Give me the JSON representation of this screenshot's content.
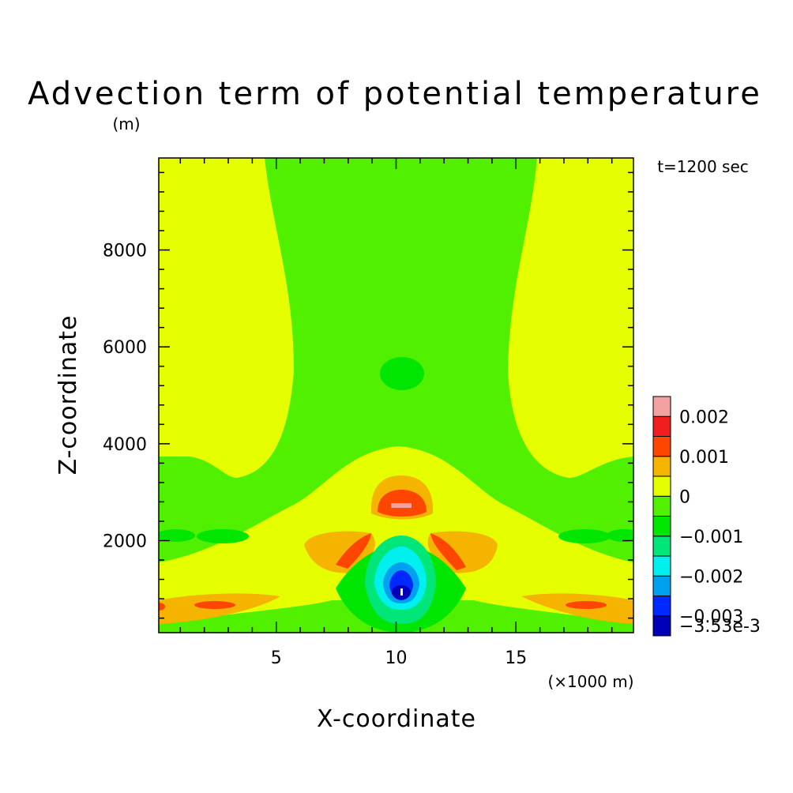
{
  "chart_data": {
    "type": "heatmap",
    "title": "Advection term of potential temperature",
    "ylabel_unit": "(m)",
    "xlabel": "X-coordinate",
    "ylabel": "Z-coordinate",
    "xlabel_unit": "(×1000 m)",
    "annotation": "t=1200 sec",
    "xlim": [
      0.1,
      19.9
    ],
    "ylim": [
      100,
      9900
    ],
    "x_ticks": [
      5,
      10,
      15
    ],
    "y_ticks": [
      2000,
      4000,
      6000,
      8000
    ],
    "grid": false,
    "colorbar": {
      "placement": "right",
      "levels": [
        {
          "color": "#0000b8",
          "label": "-3.53e-3"
        },
        {
          "color": "#0028ff",
          "label": "-0.003"
        },
        {
          "color": "#00a0f0",
          "label": ""
        },
        {
          "color": "#00f0f0",
          "label": "-0.002"
        },
        {
          "color": "#00e678",
          "label": ""
        },
        {
          "color": "#00e600",
          "label": "-0.001"
        },
        {
          "color": "#50f000",
          "label": ""
        },
        {
          "color": "#e6ff00",
          "label": "0"
        },
        {
          "color": "#f5b400",
          "label": ""
        },
        {
          "color": "#ff4600",
          "label": "0.001"
        },
        {
          "color": "#f01e1e",
          "label": ""
        },
        {
          "color": "#f5a0a0",
          "label": "0.002"
        }
      ]
    }
  }
}
